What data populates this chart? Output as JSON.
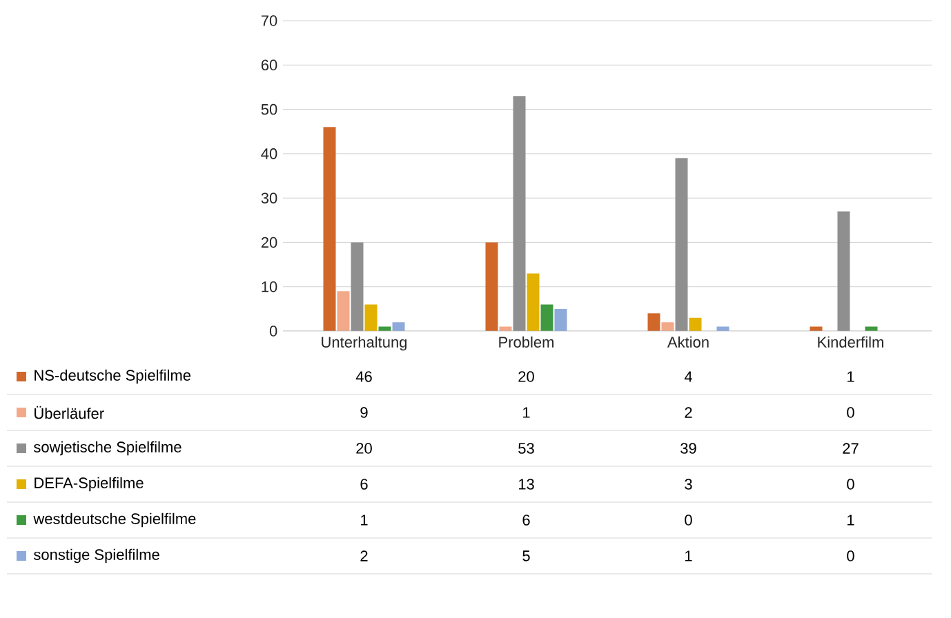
{
  "chart_data": {
    "type": "bar",
    "categories": [
      "Unterhaltung",
      "Problem",
      "Aktion",
      "Kinderfilm"
    ],
    "series": [
      {
        "name": "NS-deutsche Spielfilme",
        "color": "#d2672a",
        "values": [
          46,
          20,
          4,
          1
        ]
      },
      {
        "name": "Überläufer",
        "color": "#f2a98a",
        "values": [
          9,
          1,
          2,
          0
        ]
      },
      {
        "name": "sowjetische Spielfilme",
        "color": "#8f8f8f",
        "values": [
          20,
          53,
          39,
          27
        ]
      },
      {
        "name": "DEFA-Spielfilme",
        "color": "#e3b100",
        "values": [
          6,
          13,
          3,
          0
        ]
      },
      {
        "name": "westdeutsche Spielfilme",
        "color": "#3f9a3f",
        "values": [
          1,
          6,
          0,
          1
        ]
      },
      {
        "name": "sonstige Spielfilme",
        "color": "#8eaadb",
        "values": [
          2,
          5,
          1,
          0
        ]
      }
    ],
    "ylim": [
      0,
      70
    ],
    "yticks": [
      0,
      10,
      20,
      30,
      40,
      50,
      60,
      70
    ],
    "grid": "y",
    "legend": "bottom",
    "data_labels": true
  }
}
